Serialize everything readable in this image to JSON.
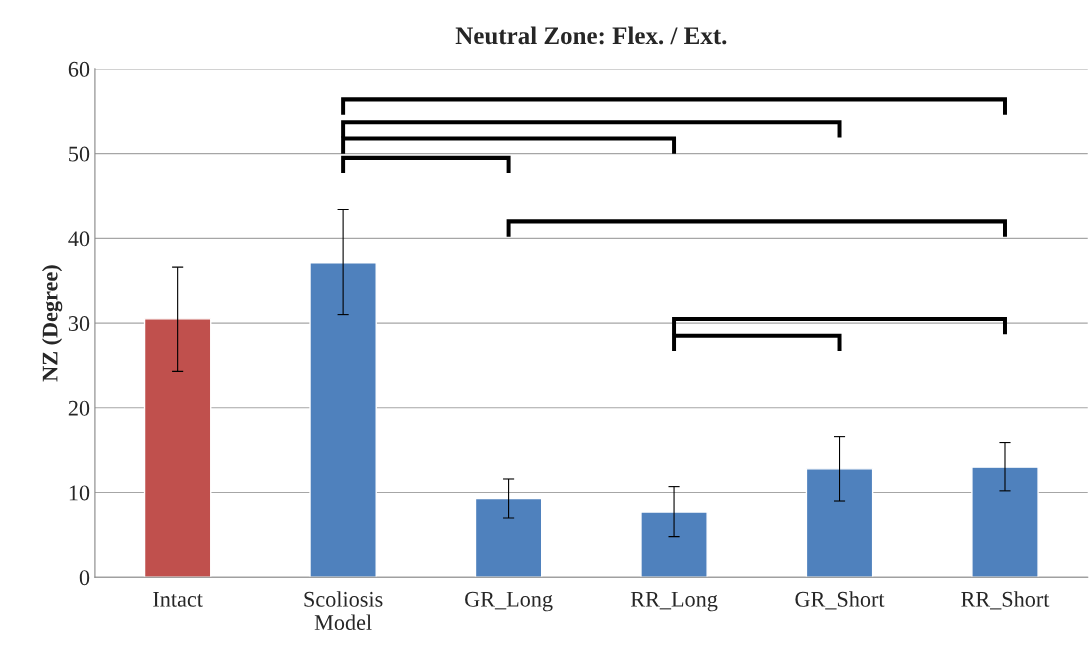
{
  "chart_data": {
    "type": "bar",
    "title": "Neutral Zone: Flex. / Ext.",
    "ylabel": "NZ (Degree)",
    "categories": [
      "Intact",
      "Scoliosis\nModel",
      "GR_Long",
      "RR_Long",
      "GR_Short",
      "RR_Short"
    ],
    "values": [
      30.5,
      37.1,
      9.3,
      7.7,
      12.8,
      13.0
    ],
    "colors": [
      "#c0504d",
      "#4f81bd",
      "#4f81bd",
      "#4f81bd",
      "#4f81bd",
      "#4f81bd"
    ],
    "errors": [
      [
        24.3,
        36.6
      ],
      [
        31.0,
        43.4
      ],
      [
        7.0,
        11.6
      ],
      [
        4.8,
        10.7
      ],
      [
        9.0,
        16.6
      ],
      [
        10.2,
        15.9
      ]
    ],
    "ylim": [
      0,
      60
    ],
    "yticks": [
      0,
      10,
      20,
      30,
      40,
      50,
      60
    ],
    "grid": "y",
    "legend": false
  }
}
